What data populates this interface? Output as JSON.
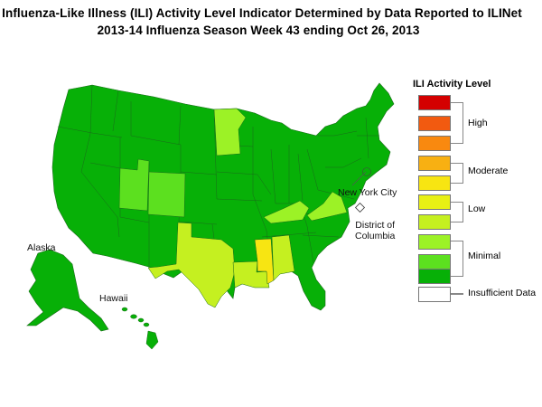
{
  "title_line1": "Influenza-Like Illness (ILI) Activity Level Indicator Determined by Data Reported to ILINet",
  "title_line2": "2013-14  Influenza Season Week  43 ending Oct 26, 2013",
  "map_labels": {
    "alaska": "Alaska",
    "hawaii": "Hawaii",
    "new_york_city": "New York City",
    "dc_line1": "District of",
    "dc_line2": "Columbia"
  },
  "legend": {
    "title": "ILI Activity Level",
    "levels": [
      {
        "level": 10,
        "color": "#d40000"
      },
      {
        "level": 9,
        "color": "#f25a10"
      },
      {
        "level": 8,
        "color": "#f9890f"
      },
      {
        "level": 7,
        "color": "#f8b012"
      },
      {
        "level": 6,
        "color": "#f7e512"
      },
      {
        "level": 5,
        "color": "#e8f014"
      },
      {
        "level": 4,
        "color": "#c5f020"
      },
      {
        "level": 3,
        "color": "#9cf226"
      },
      {
        "level": 2,
        "color": "#5ce01f"
      },
      {
        "level": 1,
        "color": "#07b007"
      },
      {
        "level": 0,
        "color": "#ffffff"
      }
    ],
    "groups": [
      "High",
      "Moderate",
      "Low",
      "Minimal",
      "Insufficient Data"
    ]
  },
  "state_activity": {
    "minimal_green": "#07b007",
    "minimal_light": "#5ce01f",
    "low_light": "#c5f020"
  }
}
